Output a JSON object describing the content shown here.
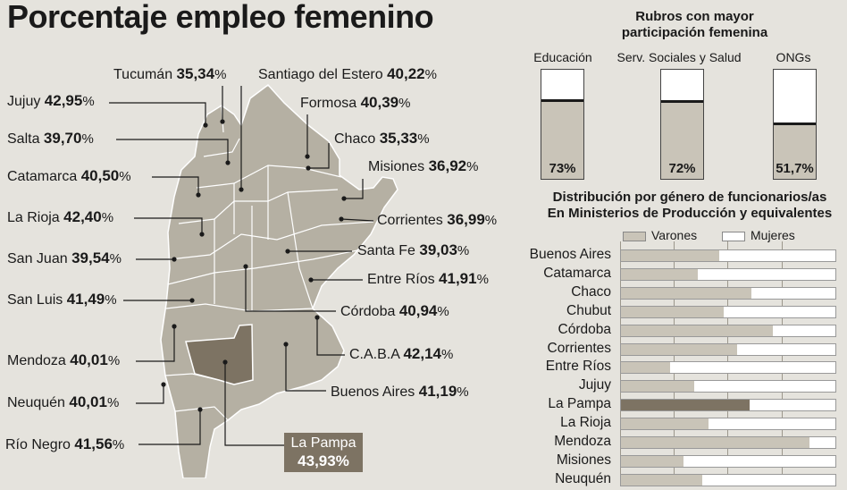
{
  "title": "Porcentaje empleo femenino",
  "map": {
    "labels": [
      {
        "key": "tucuman",
        "name": "Tucumán",
        "value": "35,34",
        "pct": "%"
      },
      {
        "key": "sde",
        "name": "Santiago del Estero",
        "value": "40,22",
        "pct": "%"
      },
      {
        "key": "jujuy",
        "name": "Jujuy",
        "value": "42,95",
        "pct": "%"
      },
      {
        "key": "formosa",
        "name": "Formosa",
        "value": "40,39",
        "pct": "%"
      },
      {
        "key": "salta",
        "name": "Salta",
        "value": "39,70",
        "pct": "%"
      },
      {
        "key": "chaco",
        "name": "Chaco",
        "value": "35,33",
        "pct": "%"
      },
      {
        "key": "catamarca",
        "name": "Catamarca",
        "value": "40,50",
        "pct": "%"
      },
      {
        "key": "misiones",
        "name": "Misiones",
        "value": "36,92",
        "pct": "%"
      },
      {
        "key": "larioja",
        "name": "La Rioja",
        "value": "42,40",
        "pct": "%"
      },
      {
        "key": "corrientes",
        "name": "Corrientes",
        "value": "36,99",
        "pct": "%"
      },
      {
        "key": "sanjuan",
        "name": "San Juan",
        "value": "39,54",
        "pct": "%"
      },
      {
        "key": "santafe",
        "name": "Santa Fe",
        "value": "39,03",
        "pct": "%"
      },
      {
        "key": "entrerios",
        "name": "Entre Ríos",
        "value": "41,91",
        "pct": "%"
      },
      {
        "key": "sanluis",
        "name": "San Luis",
        "value": "41,49",
        "pct": "%"
      },
      {
        "key": "cordoba",
        "name": "Córdoba",
        "value": "40,94",
        "pct": "%"
      },
      {
        "key": "caba",
        "name": "C.A.B.A",
        "value": "42,14",
        "pct": "%"
      },
      {
        "key": "mendoza",
        "name": "Mendoza",
        "value": "40,01",
        "pct": "%"
      },
      {
        "key": "bsas",
        "name": "Buenos Aires",
        "value": "41,19",
        "pct": "%"
      },
      {
        "key": "neuquen",
        "name": "Neuquén",
        "value": "40,01",
        "pct": "%"
      },
      {
        "key": "rionegro",
        "name": "Río Negro",
        "value": "41,56",
        "pct": "%"
      }
    ],
    "highlight": {
      "name": "La Pampa",
      "value": "43,93%"
    }
  },
  "rubros": {
    "title_line1": "Rubros con mayor",
    "title_line2": "participación femenina",
    "items": [
      {
        "name": "Educación",
        "label": "73%"
      },
      {
        "name": "Serv. Sociales y Salud",
        "label": "72%"
      },
      {
        "name": "ONGs",
        "label": "51,7%"
      }
    ]
  },
  "distribucion": {
    "title_line1": "Distribución por género de funcionarios/as",
    "title_line2": "En Ministerios de Producción y equivalentes",
    "legend": {
      "varones": "Varones",
      "mujeres": "Mujeres"
    },
    "colors": {
      "varones": "#c9c4b8",
      "mujeres": "#ffffff",
      "highlight": "#7d7363"
    }
  },
  "chart_data": [
    {
      "type": "bar",
      "title": "Rubros con mayor participación femenina",
      "categories": [
        "Educación",
        "Serv. Sociales y Salud",
        "ONGs"
      ],
      "values": [
        73,
        72,
        51.7
      ],
      "ylim": [
        0,
        100
      ]
    },
    {
      "type": "bar",
      "orientation": "horizontal",
      "title": "Distribución por género de funcionarios/as En Ministerios de Producción y equivalentes",
      "categories": [
        "Buenos Aires",
        "Catamarca",
        "Chaco",
        "Chubut",
        "Córdoba",
        "Corrientes",
        "Entre Ríos",
        "Jujuy",
        "La Pampa",
        "La Rioja",
        "Mendoza",
        "Misiones",
        "Neuquén"
      ],
      "series": [
        {
          "name": "Varones",
          "values": [
            46,
            36,
            61,
            48,
            71,
            54,
            23,
            34,
            60,
            41,
            88,
            29,
            38
          ]
        }
      ],
      "highlight": "La Pampa",
      "xlim": [
        0,
        100
      ]
    }
  ]
}
